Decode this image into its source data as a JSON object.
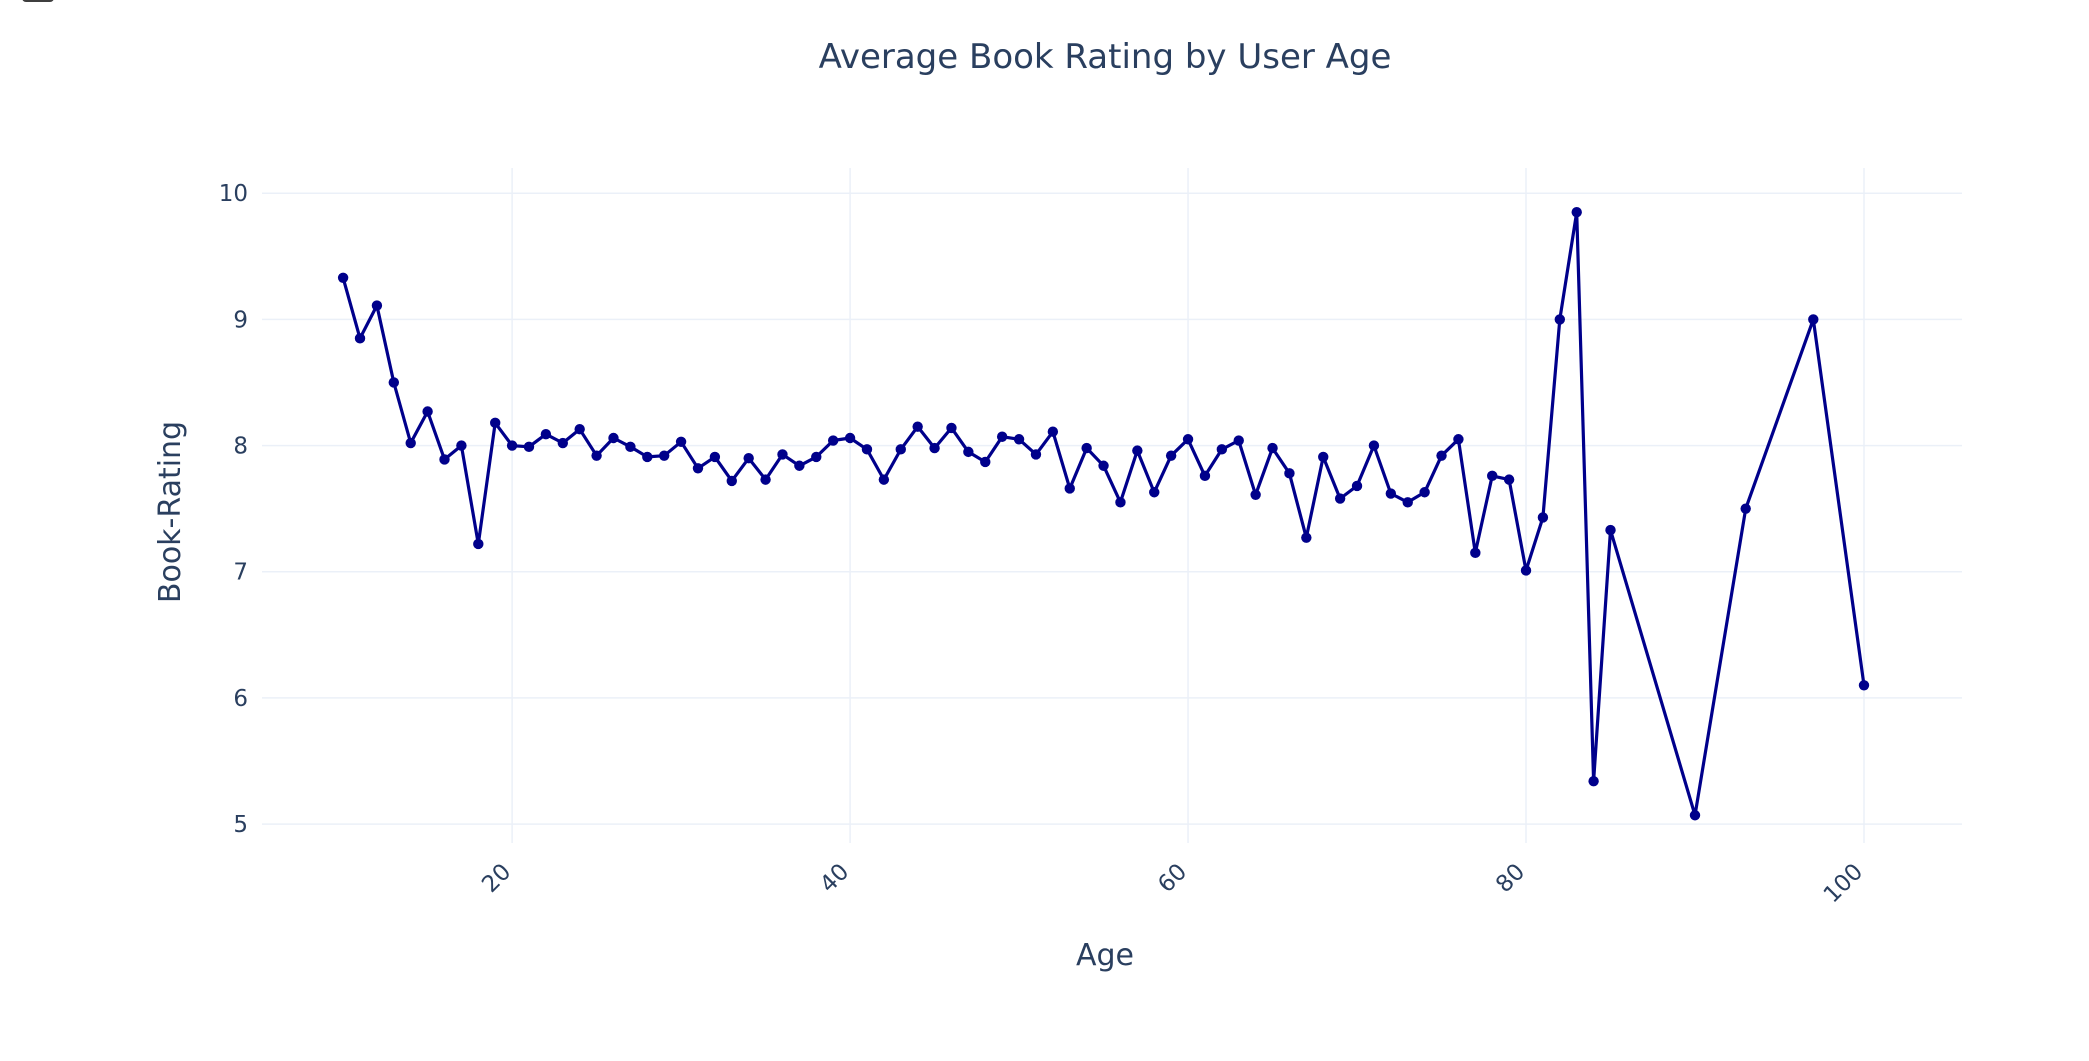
{
  "chart_data": {
    "type": "line",
    "title": "Average Book Rating by User Age",
    "xlabel": "Age",
    "ylabel": "Book-Rating",
    "xlim": [
      5.2,
      105.8
    ],
    "ylim": [
      4.85,
      10.2
    ],
    "x_ticks": [
      20,
      40,
      60,
      80,
      100
    ],
    "y_ticks": [
      5,
      6,
      7,
      8,
      9,
      10
    ],
    "grid": true,
    "markers": true,
    "line_color": "#00008b",
    "series": [
      {
        "x": [
          10,
          11,
          12,
          13,
          14,
          15,
          16,
          17,
          18,
          19,
          20,
          21,
          22,
          23,
          24,
          25,
          26,
          27,
          28,
          29,
          30,
          31,
          32,
          33,
          34,
          35,
          36,
          37,
          38,
          39,
          40,
          41,
          42,
          43,
          44,
          45,
          46,
          47,
          48,
          49,
          50,
          51,
          52,
          53,
          54,
          55,
          56,
          57,
          58,
          59,
          60,
          61,
          62,
          63,
          64,
          65,
          66,
          67,
          68,
          69,
          70,
          71,
          72,
          73,
          74,
          75,
          76,
          77,
          78,
          79,
          80,
          81,
          82,
          83,
          84,
          85,
          90,
          93,
          97,
          100
        ],
        "y": [
          9.33,
          8.85,
          9.11,
          8.5,
          8.02,
          8.27,
          7.89,
          8.0,
          7.22,
          8.18,
          8.0,
          7.99,
          8.09,
          8.02,
          8.13,
          7.92,
          8.06,
          7.99,
          7.91,
          7.92,
          8.03,
          7.82,
          7.91,
          7.72,
          7.9,
          7.73,
          7.93,
          7.84,
          7.91,
          8.04,
          8.06,
          7.97,
          7.73,
          7.97,
          8.15,
          7.98,
          8.14,
          7.95,
          7.87,
          8.07,
          8.05,
          7.93,
          8.11,
          7.66,
          7.98,
          7.84,
          7.55,
          7.96,
          7.63,
          7.92,
          8.05,
          7.76,
          7.97,
          8.04,
          7.61,
          7.98,
          7.78,
          7.27,
          7.91,
          7.58,
          7.68,
          8.0,
          7.62,
          7.55,
          7.63,
          7.92,
          8.05,
          7.15,
          7.76,
          7.73,
          7.01,
          7.43,
          9.0,
          9.85,
          5.34,
          7.33,
          5.07,
          7.5,
          9.0,
          6.1
        ]
      }
    ]
  }
}
